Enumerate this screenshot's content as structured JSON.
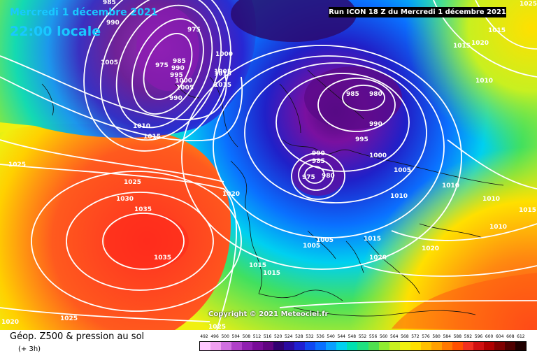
{
  "header": {
    "date": "Mercredi 1 décembre 2021",
    "time": "22:00 locale",
    "run": "Run ICON 18 Z du Mercredi 1 décembre 2021"
  },
  "copyright": "Copyright © 2021 Meteociel.fr",
  "footer": {
    "title": "Géop. Z500 & pression au sol",
    "subtitle": "(+ 3h)"
  },
  "scale": {
    "values": [
      "492",
      "496",
      "500",
      "504",
      "508",
      "512",
      "516",
      "520",
      "524",
      "528",
      "532",
      "536",
      "540",
      "544",
      "548",
      "552",
      "556",
      "560",
      "564",
      "568",
      "572",
      "576",
      "580",
      "584",
      "588",
      "592",
      "596",
      "600",
      "604",
      "608",
      "612"
    ],
    "colors": [
      "#ffc8ff",
      "#f0a0f0",
      "#d070e0",
      "#b040c8",
      "#9020b0",
      "#780c98",
      "#600480",
      "#300070",
      "#2a0aa0",
      "#2020d0",
      "#1048f0",
      "#0a70ff",
      "#0aa0ff",
      "#00d0f0",
      "#00e0b0",
      "#20e080",
      "#50e050",
      "#90ec30",
      "#c8f020",
      "#f0f010",
      "#ffe000",
      "#ffc000",
      "#ffa000",
      "#ff7800",
      "#ff5000",
      "#f03020",
      "#d01010",
      "#b00000",
      "#800000",
      "#500000",
      "#200000"
    ]
  },
  "isobars": [
    {
      "label": "985",
      "x": "1005",
      "y": ""
    },
    {
      "label": "990"
    },
    {
      "label": "975"
    },
    {
      "label": "1005"
    },
    {
      "label": "1000"
    }
  ],
  "isobar_labels": [
    "985",
    "990",
    "975",
    "1005",
    "1000",
    "1005",
    "975",
    "985",
    "990",
    "995",
    "1000",
    "1005",
    "990",
    "1010",
    "1015",
    "1015",
    "1015",
    "985",
    "980",
    "990",
    "995",
    "1000",
    "990",
    "985",
    "975",
    "980",
    "1005",
    "1010",
    "1020",
    "1025",
    "1030",
    "1035",
    "1035",
    "1025",
    "1020",
    "1025",
    "1015",
    "1015",
    "1005",
    "1005",
    "1015",
    "1020",
    "1010",
    "1010",
    "1010",
    "1010",
    "1020",
    "1015",
    "1015",
    "1020",
    "1025",
    "1015",
    "1025"
  ]
}
